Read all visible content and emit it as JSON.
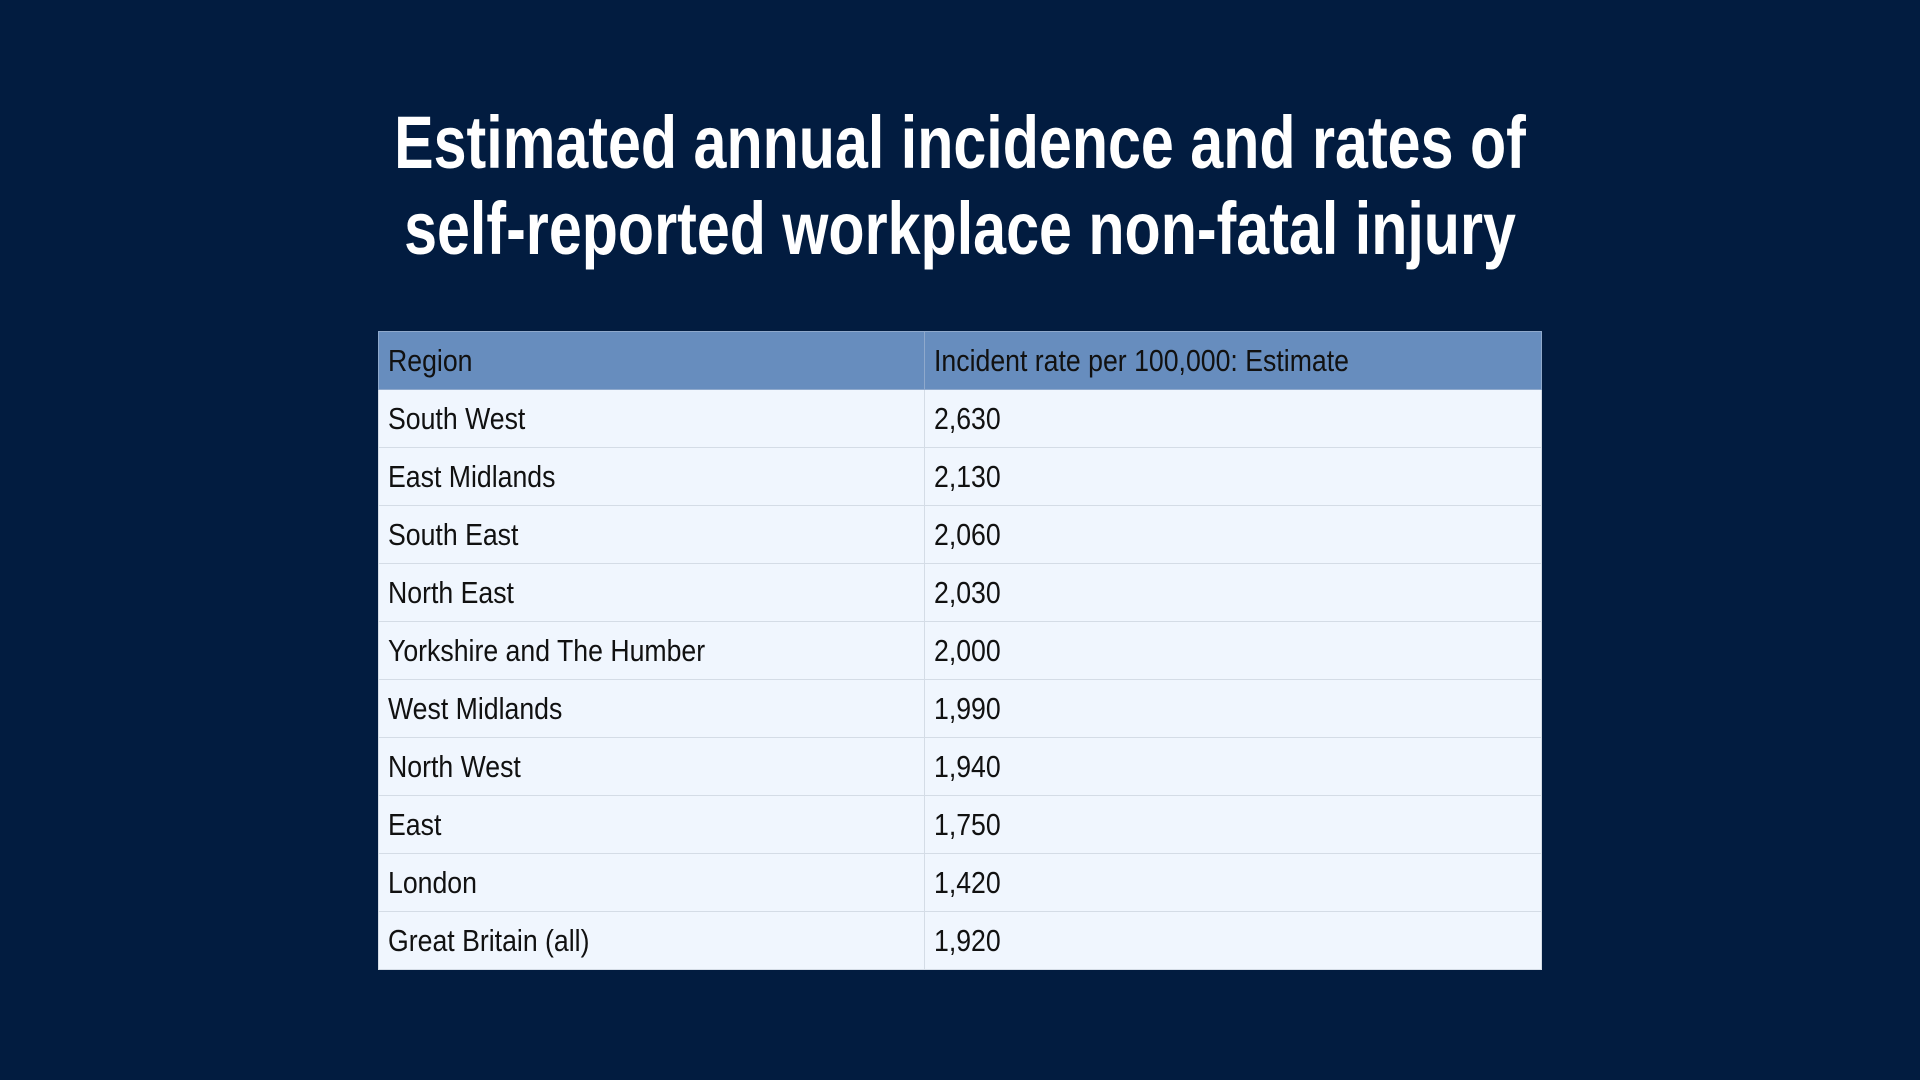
{
  "title": {
    "line1": "Estimated annual incidence and rates of",
    "line2": "self-reported workplace non-fatal injury"
  },
  "table": {
    "headers": [
      "Region",
      "Incident rate per 100,000: Estimate"
    ],
    "rows": [
      [
        "South West",
        "2,630"
      ],
      [
        "East Midlands",
        "2,130"
      ],
      [
        "South East",
        "2,060"
      ],
      [
        "North East",
        "2,030"
      ],
      [
        "Yorkshire and The Humber",
        "2,000"
      ],
      [
        "West Midlands",
        "1,990"
      ],
      [
        "North West",
        "1,940"
      ],
      [
        "East",
        "1,750"
      ],
      [
        "London",
        "1,420"
      ],
      [
        "Great Britain (all)",
        "1,920"
      ]
    ]
  }
}
